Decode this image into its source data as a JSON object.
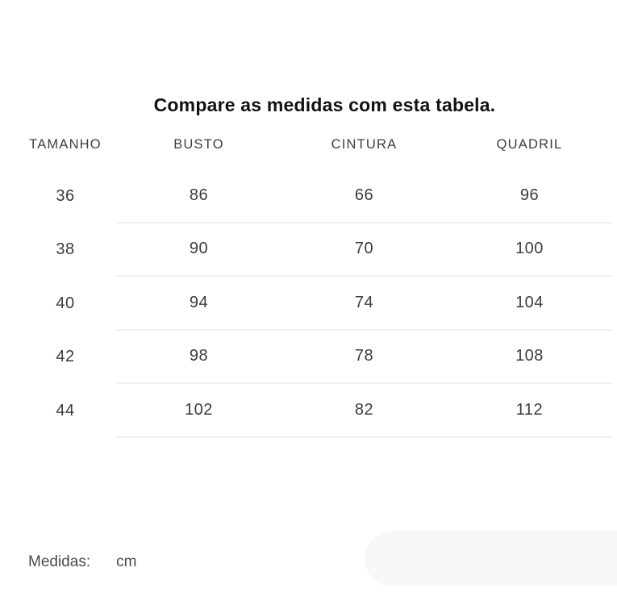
{
  "title": "Compare as medidas com esta tabela.",
  "table": {
    "headers": [
      "TAMANHO",
      "BUSTO",
      "CINTURA",
      "QUADRIL"
    ],
    "rows": [
      {
        "size": "36",
        "busto": "86",
        "cintura": "66",
        "quadril": "96"
      },
      {
        "size": "38",
        "busto": "90",
        "cintura": "70",
        "quadril": "100"
      },
      {
        "size": "40",
        "busto": "94",
        "cintura": "74",
        "quadril": "104"
      },
      {
        "size": "42",
        "busto": "98",
        "cintura": "78",
        "quadril": "108"
      },
      {
        "size": "44",
        "busto": "102",
        "cintura": "82",
        "quadril": "112"
      }
    ]
  },
  "footer": {
    "label": "Medidas:",
    "unit": "cm"
  },
  "colors": {
    "background": "#ffffff",
    "title": "#121212",
    "header-text": "#3e3e3e",
    "cell-text": "#3c3c3c",
    "footer-text": "#4a4a4a",
    "divider": "#f0f0f0",
    "pill": "#f8f8f8"
  }
}
